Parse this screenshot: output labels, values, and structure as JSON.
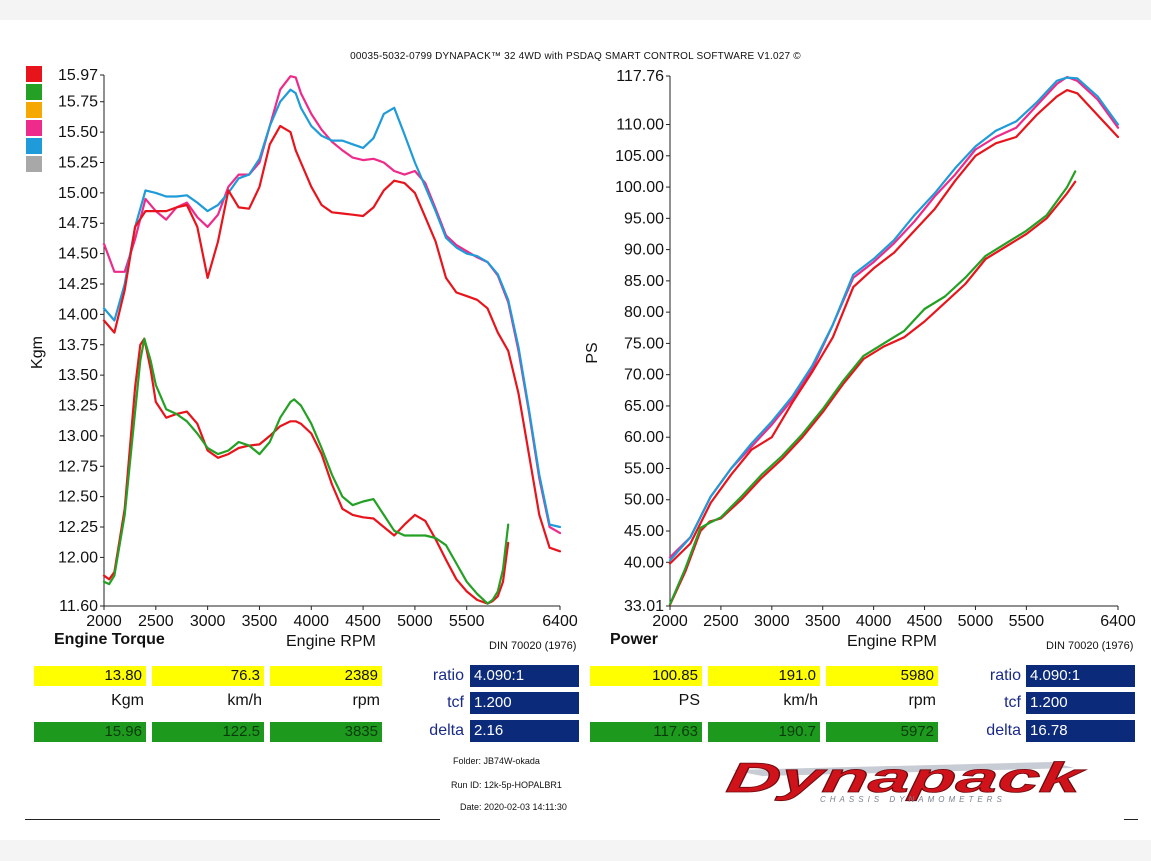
{
  "header": "00035-5032-0799 DYNAPACK™ 32 4WD with PSDAQ SMART CONTROL SOFTWARE V1.027 ©",
  "legend_colors": [
    "#e8141c",
    "#24a024",
    "#f5a800",
    "#ee2a8a",
    "#1e9bd8",
    "#a8a8a8"
  ],
  "torque_panel": {
    "title": "Engine Torque",
    "xlabel": "Engine RPM",
    "std": "DIN 70020 (1976)"
  },
  "power_panel": {
    "title": "Power",
    "xlabel": "Engine RPM",
    "std": "DIN 70020 (1976)"
  },
  "torque_readout": {
    "row1": [
      "13.80",
      "76.3",
      "2389"
    ],
    "units": [
      "Kgm",
      "km/h",
      "rpm"
    ],
    "row2": [
      "15.96",
      "122.5",
      "3835"
    ],
    "params": [
      {
        "label": "ratio",
        "value": "4.090:1"
      },
      {
        "label": "tcf",
        "value": "1.200"
      },
      {
        "label": "delta",
        "value": "2.16"
      }
    ]
  },
  "power_readout": {
    "row1": [
      "100.85",
      "191.0",
      "5980"
    ],
    "units": [
      "PS",
      "km/h",
      "rpm"
    ],
    "row2": [
      "117.63",
      "190.7",
      "5972"
    ],
    "params": [
      {
        "label": "ratio",
        "value": "4.090:1"
      },
      {
        "label": "tcf",
        "value": "1.200"
      },
      {
        "label": "delta",
        "value": "16.78"
      }
    ]
  },
  "info": {
    "folder": "Folder:  JB74W-okada",
    "run": "Run ID:  12k-5p-HOPALBR1",
    "date": "Date:  2020-02-03 14:11:30"
  },
  "logo": {
    "brand": "Dynapack",
    "tagline": "CHASSIS DYNAMOMETERS"
  },
  "chart_data": [
    {
      "type": "line",
      "ylabel": "Kgm",
      "xlabel": "Engine RPM",
      "xlim": [
        2000,
        6400
      ],
      "ylim": [
        11.6,
        15.97
      ],
      "xticks": [
        2000,
        2500,
        3000,
        3500,
        4000,
        4500,
        5000,
        5500,
        6400
      ],
      "yticks": [
        "15.97",
        "15.75",
        "15.50",
        "15.25",
        "15.00",
        "14.75",
        "14.50",
        "14.25",
        "14.00",
        "13.75",
        "13.50",
        "13.25",
        "13.00",
        "12.75",
        "12.50",
        "12.25",
        "12.00",
        "11.60"
      ],
      "series": [
        {
          "color": "#ee2a8a",
          "x": [
            2000,
            2100,
            2200,
            2300,
            2400,
            2500,
            2600,
            2700,
            2800,
            2900,
            3000,
            3100,
            3200,
            3300,
            3400,
            3500,
            3600,
            3700,
            3800,
            3850,
            3900,
            4000,
            4100,
            4200,
            4300,
            4400,
            4500,
            4600,
            4700,
            4800,
            4900,
            5000,
            5100,
            5200,
            5300,
            5400,
            5500,
            5600,
            5700,
            5800,
            5900,
            6000,
            6100,
            6200,
            6300,
            6400
          ],
          "y": [
            14.58,
            14.35,
            14.35,
            14.62,
            14.95,
            14.85,
            14.78,
            14.88,
            14.92,
            14.8,
            14.72,
            14.82,
            15.05,
            15.15,
            15.15,
            15.25,
            15.55,
            15.85,
            15.96,
            15.95,
            15.82,
            15.65,
            15.52,
            15.42,
            15.35,
            15.29,
            15.27,
            15.28,
            15.25,
            15.18,
            15.15,
            15.18,
            15.08,
            14.87,
            14.65,
            14.57,
            14.52,
            14.47,
            14.43,
            14.32,
            14.1,
            13.7,
            13.2,
            12.65,
            12.25,
            12.2
          ]
        },
        {
          "color": "#1e9bd8",
          "x": [
            2000,
            2100,
            2200,
            2300,
            2400,
            2500,
            2600,
            2700,
            2800,
            2900,
            3000,
            3100,
            3200,
            3300,
            3400,
            3500,
            3600,
            3700,
            3800,
            3850,
            3900,
            4000,
            4100,
            4200,
            4300,
            4400,
            4500,
            4600,
            4700,
            4800,
            4900,
            5000,
            5100,
            5200,
            5300,
            5400,
            5500,
            5600,
            5700,
            5800,
            5900,
            6000,
            6100,
            6200,
            6300,
            6400
          ],
          "y": [
            14.05,
            13.95,
            14.25,
            14.72,
            15.02,
            15.0,
            14.97,
            14.97,
            14.98,
            14.92,
            14.85,
            14.9,
            15.0,
            15.12,
            15.15,
            15.28,
            15.55,
            15.75,
            15.85,
            15.82,
            15.7,
            15.55,
            15.47,
            15.43,
            15.43,
            15.4,
            15.37,
            15.45,
            15.65,
            15.7,
            15.48,
            15.25,
            15.05,
            14.85,
            14.63,
            14.55,
            14.5,
            14.48,
            14.43,
            14.33,
            14.12,
            13.73,
            13.22,
            12.68,
            12.27,
            12.25
          ]
        },
        {
          "color": "#e8141c",
          "x": [
            2000,
            2100,
            2200,
            2300,
            2400,
            2500,
            2600,
            2700,
            2800,
            2900,
            3000,
            3100,
            3200,
            3300,
            3400,
            3500,
            3600,
            3700,
            3800,
            3850,
            3900,
            4000,
            4100,
            4200,
            4300,
            4400,
            4500,
            4600,
            4700,
            4800,
            4900,
            5000,
            5100,
            5200,
            5300,
            5400,
            5500,
            5600,
            5700,
            5800,
            5900,
            6000,
            6100,
            6200,
            6300,
            6400
          ],
          "y": [
            13.95,
            13.85,
            14.2,
            14.72,
            14.85,
            14.85,
            14.85,
            14.88,
            14.9,
            14.72,
            14.3,
            14.6,
            15.02,
            14.88,
            14.87,
            15.05,
            15.4,
            15.55,
            15.5,
            15.35,
            15.25,
            15.05,
            14.9,
            14.84,
            14.83,
            14.82,
            14.81,
            14.88,
            15.02,
            15.1,
            15.08,
            15.0,
            14.8,
            14.6,
            14.3,
            14.18,
            14.15,
            14.12,
            14.05,
            13.85,
            13.7,
            13.35,
            12.85,
            12.35,
            12.08,
            12.05
          ]
        },
        {
          "color": "#e8141c",
          "x": [
            2000,
            2050,
            2100,
            2200,
            2300,
            2350,
            2389,
            2450,
            2500,
            2600,
            2700,
            2800,
            2900,
            3000,
            3100,
            3200,
            3300,
            3400,
            3500,
            3600,
            3700,
            3800,
            3850,
            3900,
            4000,
            4100,
            4200,
            4300,
            4400,
            4500,
            4600,
            4700,
            4800,
            4900,
            5000,
            5100,
            5200,
            5300,
            5400,
            5500,
            5600,
            5700,
            5750,
            5800,
            5850,
            5900
          ],
          "y": [
            11.85,
            11.82,
            11.88,
            12.4,
            13.4,
            13.75,
            13.8,
            13.55,
            13.28,
            13.15,
            13.18,
            13.2,
            13.1,
            12.88,
            12.82,
            12.85,
            12.9,
            12.92,
            12.93,
            13.0,
            13.08,
            13.12,
            13.12,
            13.1,
            13.02,
            12.85,
            12.6,
            12.4,
            12.35,
            12.33,
            12.32,
            12.25,
            12.18,
            12.27,
            12.35,
            12.3,
            12.15,
            11.98,
            11.82,
            11.72,
            11.65,
            11.62,
            11.64,
            11.68,
            11.8,
            12.12
          ]
        },
        {
          "color": "#24a024",
          "x": [
            2000,
            2050,
            2100,
            2200,
            2300,
            2350,
            2389,
            2450,
            2500,
            2600,
            2700,
            2800,
            2900,
            3000,
            3100,
            3200,
            3300,
            3400,
            3500,
            3600,
            3700,
            3800,
            3835,
            3900,
            4000,
            4100,
            4200,
            4300,
            4400,
            4500,
            4600,
            4700,
            4800,
            4900,
            5000,
            5100,
            5200,
            5300,
            5400,
            5500,
            5600,
            5700,
            5750,
            5800,
            5850,
            5900
          ],
          "y": [
            11.8,
            11.78,
            11.85,
            12.35,
            13.2,
            13.62,
            13.8,
            13.62,
            13.42,
            13.22,
            13.18,
            13.12,
            13.02,
            12.9,
            12.85,
            12.88,
            12.95,
            12.92,
            12.85,
            12.95,
            13.15,
            13.28,
            13.3,
            13.25,
            13.1,
            12.9,
            12.68,
            12.5,
            12.43,
            12.46,
            12.48,
            12.35,
            12.22,
            12.18,
            12.18,
            12.18,
            12.16,
            12.1,
            11.95,
            11.8,
            11.7,
            11.62,
            11.65,
            11.72,
            11.9,
            12.27
          ]
        }
      ]
    },
    {
      "type": "line",
      "ylabel": "PS",
      "xlabel": "Engine RPM",
      "xlim": [
        2000,
        6400
      ],
      "ylim": [
        33.01,
        117.76
      ],
      "xticks": [
        2000,
        2500,
        3000,
        3500,
        4000,
        4500,
        5000,
        5500,
        6400
      ],
      "yticks": [
        "117.76",
        "110.00",
        "105.00",
        "100.00",
        "95.00",
        "90.00",
        "85.00",
        "80.00",
        "75.00",
        "70.00",
        "65.00",
        "60.00",
        "55.00",
        "50.00",
        "45.00",
        "40.00",
        "33.01"
      ],
      "series": [
        {
          "color": "#ee2a8a",
          "x": [
            2000,
            2200,
            2400,
            2600,
            2800,
            3000,
            3200,
            3400,
            3600,
            3800,
            4000,
            4200,
            4400,
            4600,
            4800,
            5000,
            5200,
            5400,
            5600,
            5800,
            5900,
            6000,
            6200,
            6400
          ],
          "y": [
            40.8,
            44.0,
            50.5,
            55.0,
            58.5,
            62.0,
            66.0,
            71.0,
            78.0,
            85.5,
            88.0,
            91.0,
            94.5,
            98.5,
            102.0,
            106.0,
            108.0,
            109.5,
            113.0,
            116.5,
            117.6,
            117.0,
            114.0,
            109.5
          ]
        },
        {
          "color": "#1e9bd8",
          "x": [
            2000,
            2200,
            2400,
            2600,
            2800,
            3000,
            3200,
            3400,
            3600,
            3800,
            4000,
            4200,
            4400,
            4600,
            4800,
            5000,
            5200,
            5400,
            5600,
            5800,
            5900,
            6000,
            6200,
            6400
          ],
          "y": [
            40.3,
            44.0,
            50.5,
            55.0,
            59.0,
            62.5,
            66.5,
            71.5,
            78.0,
            86.0,
            88.5,
            91.5,
            95.5,
            99.0,
            103.0,
            106.5,
            109.0,
            110.5,
            113.5,
            117.0,
            117.5,
            117.4,
            114.5,
            110.0
          ]
        },
        {
          "color": "#e8141c",
          "x": [
            2000,
            2200,
            2400,
            2600,
            2800,
            3000,
            3200,
            3400,
            3600,
            3800,
            4000,
            4200,
            4400,
            4600,
            4800,
            5000,
            5200,
            5400,
            5600,
            5800,
            5900,
            6000,
            6200,
            6400
          ],
          "y": [
            39.8,
            43.0,
            49.5,
            54.0,
            58.0,
            60.0,
            65.5,
            70.5,
            76.0,
            84.0,
            87.0,
            89.5,
            93.0,
            96.5,
            101.0,
            105.0,
            107.0,
            108.0,
            111.5,
            114.5,
            115.5,
            115.0,
            111.5,
            108.0
          ]
        },
        {
          "color": "#e8141c",
          "x": [
            2000,
            2150,
            2300,
            2389,
            2500,
            2700,
            2900,
            3100,
            3300,
            3500,
            3700,
            3900,
            4100,
            4300,
            4500,
            4700,
            4900,
            5100,
            5300,
            5500,
            5700,
            5900,
            5980
          ],
          "y": [
            33.2,
            38.5,
            45.0,
            46.5,
            47.0,
            50.0,
            53.5,
            56.5,
            60.0,
            64.0,
            68.5,
            72.5,
            74.5,
            76.0,
            78.5,
            81.5,
            84.5,
            88.5,
            90.5,
            92.5,
            95.0,
            99.0,
            100.85
          ]
        },
        {
          "color": "#24a024",
          "x": [
            2000,
            2150,
            2300,
            2389,
            2500,
            2700,
            2900,
            3100,
            3300,
            3500,
            3700,
            3900,
            4100,
            4300,
            4500,
            4700,
            4900,
            5100,
            5300,
            5500,
            5700,
            5900,
            5980
          ],
          "y": [
            33.3,
            39.0,
            45.5,
            46.3,
            47.2,
            50.5,
            54.0,
            57.0,
            60.5,
            64.5,
            69.0,
            73.0,
            75.0,
            77.0,
            80.5,
            82.5,
            85.5,
            89.0,
            91.0,
            93.0,
            95.5,
            100.0,
            102.5
          ]
        }
      ]
    }
  ]
}
